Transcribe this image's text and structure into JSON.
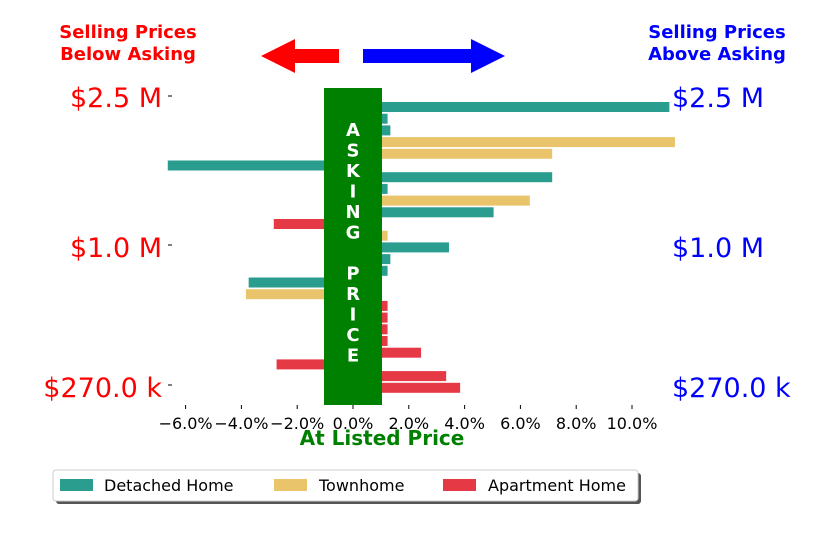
{
  "headers": {
    "left_line1": "Selling Prices",
    "left_line2": "Below Asking",
    "right_line1": "Selling Prices",
    "right_line2": "Above Asking",
    "left_color": "#ff0000",
    "right_color": "#0000ff"
  },
  "arrows": [
    {
      "direction": "left",
      "color": "#ff0000",
      "icon": "arrow-left-icon"
    },
    {
      "direction": "right",
      "color": "#0000ff",
      "icon": "arrow-right-icon"
    }
  ],
  "center_band": {
    "label_letters": [
      "A",
      "S",
      "K",
      "I",
      "N",
      "G",
      "",
      "P",
      "R",
      "I",
      "C",
      "E"
    ],
    "color": "#008000"
  },
  "chart_data": {
    "type": "bar",
    "orientation": "horizontal",
    "xlabel": "At Listed Price",
    "xlabel_color": "#008000",
    "xlim": [
      -6.5,
      10.5
    ],
    "xticks": [
      -6,
      -4,
      -2,
      0,
      2,
      4,
      6,
      8,
      10
    ],
    "xtick_labels": [
      "−6.0%",
      "−4.0%",
      "−2.0%",
      "0.0%",
      "2.0%",
      "4.0%",
      "6.0%",
      "8.0%",
      "10.0%"
    ],
    "y_axis_labels": [
      "$2.5 M",
      "$1.0 M",
      "$270.0 k"
    ],
    "left_tick_color": "#ff0000",
    "right_tick_color": "#0000ff",
    "series_colors": {
      "Detached Home": "#2a9d8f",
      "Townhome": "#e9c46a",
      "Apartment Home": "#e63946"
    },
    "bars": [
      {
        "series": "Detached Home",
        "value": 10.3
      },
      {
        "series": "Detached Home",
        "value": 0.2
      },
      {
        "series": "Detached Home",
        "value": 0.3
      },
      {
        "series": "Townhome",
        "value": 10.5
      },
      {
        "series": "Townhome",
        "value": 6.1
      },
      {
        "series": "Detached Home",
        "value": -5.6
      },
      {
        "series": "Detached Home",
        "value": 6.1
      },
      {
        "series": "Detached Home",
        "value": 0.2
      },
      {
        "series": "Townhome",
        "value": 5.3
      },
      {
        "series": "Detached Home",
        "value": 4.0
      },
      {
        "series": "Apartment Home",
        "value": -1.8
      },
      {
        "series": "Townhome",
        "value": 0.2
      },
      {
        "series": "Detached Home",
        "value": 2.4
      },
      {
        "series": "Detached Home",
        "value": 0.3
      },
      {
        "series": "Detached Home",
        "value": 0.2
      },
      {
        "series": "Detached Home",
        "value": -2.7
      },
      {
        "series": "Townhome",
        "value": -2.8
      },
      {
        "series": "Apartment Home",
        "value": 0.2
      },
      {
        "series": "Apartment Home",
        "value": 0.2
      },
      {
        "series": "Apartment Home",
        "value": 0.2
      },
      {
        "series": "Apartment Home",
        "value": 0.2
      },
      {
        "series": "Apartment Home",
        "value": 1.4
      },
      {
        "series": "Apartment Home",
        "value": -1.7
      },
      {
        "series": "Apartment Home",
        "value": 2.3
      },
      {
        "series": "Apartment Home",
        "value": 2.8
      }
    ],
    "legend": {
      "position": "bottom",
      "entries": [
        "Detached Home",
        "Townhome",
        "Apartment Home"
      ]
    },
    "grid": false
  }
}
